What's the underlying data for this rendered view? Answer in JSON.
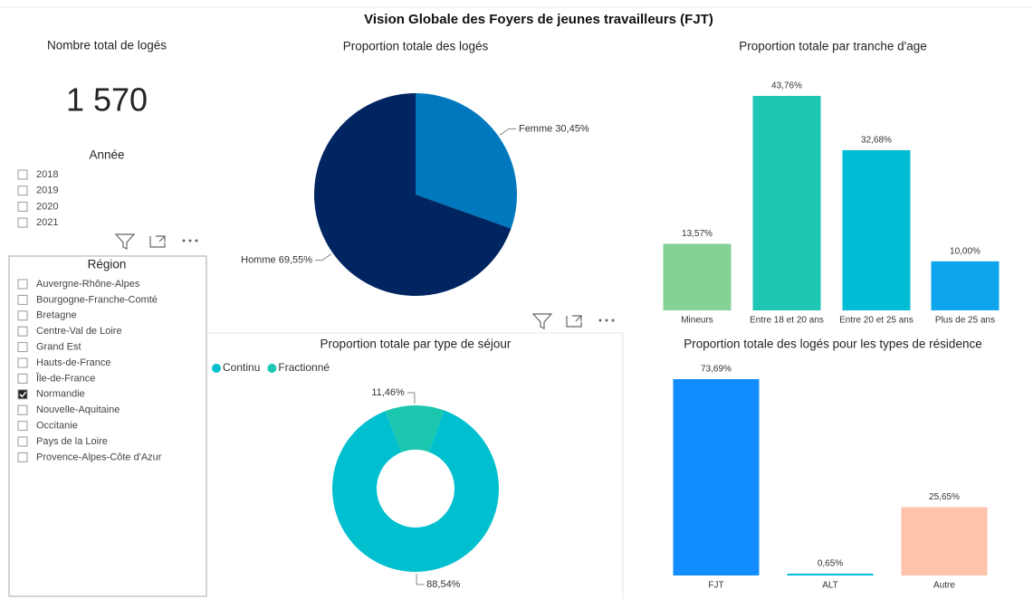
{
  "title": "Vision Globale des Foyers de jeunes travailleurs (FJT)",
  "kpi": {
    "label": "Nombre total de logés",
    "value": "1 570"
  },
  "slicers": [
    {
      "title": "Année",
      "items": [
        "2018",
        "2019",
        "2020",
        "2021"
      ]
    },
    {
      "title": "Région",
      "items": [
        "Auvergne-Rhône-Alpes",
        "Bourgogne-Franche-Comté",
        "Bretagne",
        "Centre-Val de Loire",
        "Grand Est",
        "Hauts-de-France",
        "Île-de-France",
        "Normandie",
        "Nouvelle-Aquitaine",
        "Occitanie",
        "Pays de la Loire",
        "Provence-Alpes-Côte d'Azur"
      ],
      "selected": "Normandie"
    }
  ],
  "chart_data": [
    {
      "type": "pie",
      "title": "Proportion totale des logés",
      "categories": [
        "Femme",
        "Homme"
      ],
      "values": [
        30.45,
        69.55
      ],
      "value_labels": [
        "30,45%",
        "69,55%"
      ],
      "colors": [
        "#0078be",
        "#002561"
      ]
    },
    {
      "type": "bar",
      "title": "Proportion totale par tranche d'age",
      "categories": [
        "Mineurs",
        "Entre 18 et 20 ans",
        "Entre 20 et 25 ans",
        "Plus de 25 ans"
      ],
      "values": [
        13.57,
        43.76,
        32.68,
        10.0
      ],
      "value_labels": [
        "13,57%",
        "43,76%",
        "32,68%",
        "10,00%"
      ],
      "colors": [
        "#86d196",
        "#1ec7b3",
        "#00bcd4",
        "#0ea5ec"
      ]
    },
    {
      "type": "donut",
      "title": "Proportion totale par type de séjour",
      "categories": [
        "Continu",
        "Fractionné"
      ],
      "values": [
        88.54,
        11.46
      ],
      "value_labels": [
        "88,54%",
        "11,46%"
      ],
      "colors": [
        "#00c0d0",
        "#1bc6ae"
      ],
      "legend": "top-left"
    },
    {
      "type": "bar",
      "title": "Proportion totale des logés pour les types de résidence",
      "categories": [
        "FJT",
        "ALT",
        "Autre"
      ],
      "values": [
        73.69,
        0.65,
        25.65
      ],
      "value_labels": [
        "73,69%",
        "0,65%",
        "25,65%"
      ],
      "colors": [
        "#118dff",
        "#00b7e0",
        "#ffc2ab"
      ]
    }
  ]
}
